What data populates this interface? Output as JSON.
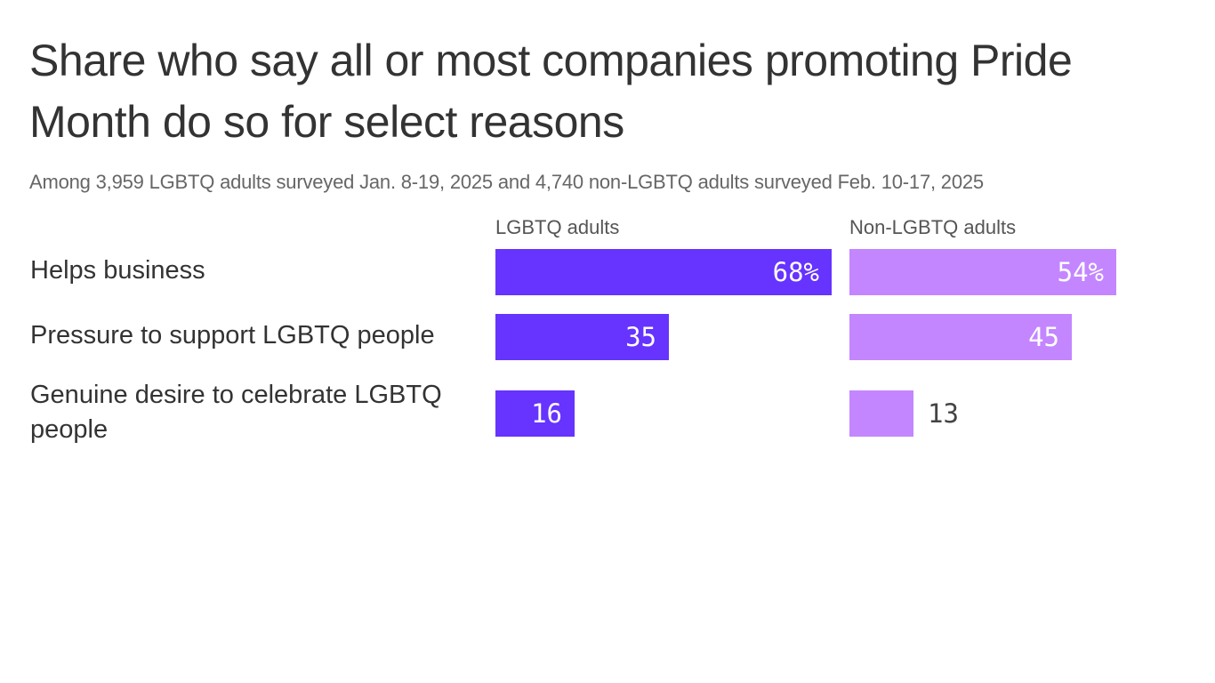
{
  "chart_data": {
    "type": "bar",
    "orientation": "horizontal",
    "title": "Share who say all or most companies promoting Pride Month do so for select reasons",
    "subtitle": "Among 3,959 LGBTQ adults surveyed Jan. 8-19, 2025 and 4,740 non-LGBTQ adults surveyed Feb. 10-17, 2025",
    "categories": [
      "Helps business",
      "Pressure to support LGBTQ people",
      "Genuine desire to celebrate LGBTQ people"
    ],
    "series": [
      {
        "name": "LGBTQ adults",
        "color": "#6633ff",
        "values": [
          68,
          35,
          16
        ],
        "labels": [
          "68%",
          "35",
          "16"
        ]
      },
      {
        "name": "Non-LGBTQ adults",
        "color": "#c386ff",
        "values": [
          54,
          45,
          13
        ],
        "labels": [
          "54%",
          "45",
          "13"
        ]
      }
    ],
    "xlim": [
      0,
      100
    ],
    "grid": false,
    "legend": "panel headers above each bar group"
  }
}
